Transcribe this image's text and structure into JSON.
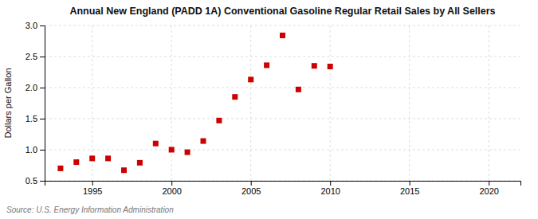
{
  "chart_data": {
    "type": "scatter",
    "title": "Annual New England (PADD 1A) Conventional Gasoline Regular Retail Sales by All Sellers",
    "y_label": "Dollars per Gallon",
    "annotations": [
      "Source: U.S. Energy Information Administration"
    ],
    "x": [
      1993,
      1994,
      1995,
      1996,
      1997,
      1998,
      1999,
      2000,
      2001,
      2002,
      2003,
      2004,
      2005,
      2006,
      2007,
      2008,
      2009,
      2010
    ],
    "values": [
      0.7,
      0.8,
      0.86,
      0.86,
      0.67,
      0.79,
      1.1,
      1.0,
      0.96,
      1.14,
      1.47,
      1.85,
      2.13,
      2.36,
      2.84,
      1.97,
      2.35,
      2.34
    ],
    "color": "#cc0000",
    "marker": "square",
    "xlim": [
      1992,
      2022
    ],
    "ylim": [
      0.5,
      3.0
    ],
    "xticks": [
      1995,
      2000,
      2005,
      2010,
      2015,
      2020
    ],
    "yticks": [
      0.5,
      {
        "value": 1.0,
        "label": "1.0"
      },
      1.5,
      {
        "value": 2.0,
        "label": "2.0"
      },
      2.5,
      {
        "value": 3.0,
        "label": "3.0"
      }
    ],
    "grid": true
  }
}
